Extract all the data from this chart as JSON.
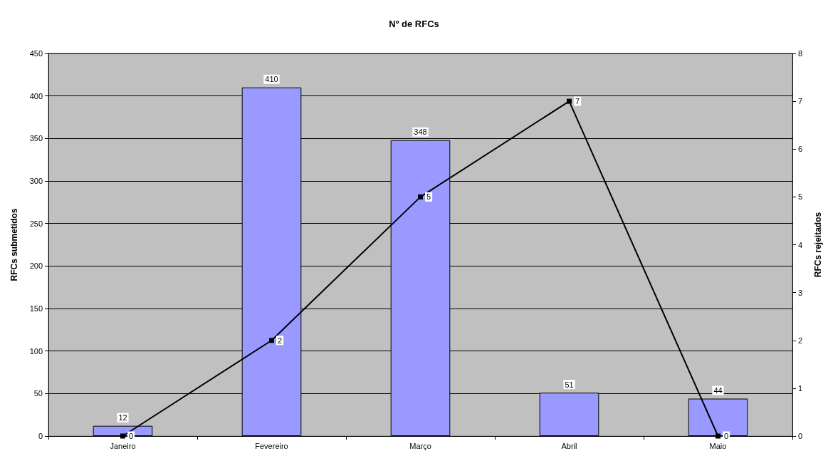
{
  "chart_data": {
    "type": "bar",
    "title": "Nº de RFCs",
    "ylabel": "RFCs submetidos",
    "y2label": "RFCs rejeitados",
    "categories": [
      "Janeiro",
      "Fevereiro",
      "Março",
      "Abril",
      "Maio"
    ],
    "series": [
      {
        "color": "#9999ff",
        "values": [
          12,
          410,
          348,
          51,
          44
        ]
      },
      {
        "type": "line",
        "axis": "y2",
        "color": "#000000",
        "values": [
          0,
          2,
          5,
          7,
          0
        ]
      }
    ],
    "ylim": [
      0,
      450
    ],
    "yticks": [
      0,
      50,
      100,
      150,
      200,
      250,
      300,
      350,
      400,
      450
    ],
    "y2lim": [
      0,
      8
    ],
    "y2ticks": [
      0,
      1,
      2,
      3,
      4,
      5,
      6,
      7,
      8
    ],
    "grid": "y",
    "marker": "square",
    "line_style": "solid",
    "data_labels": true
  }
}
